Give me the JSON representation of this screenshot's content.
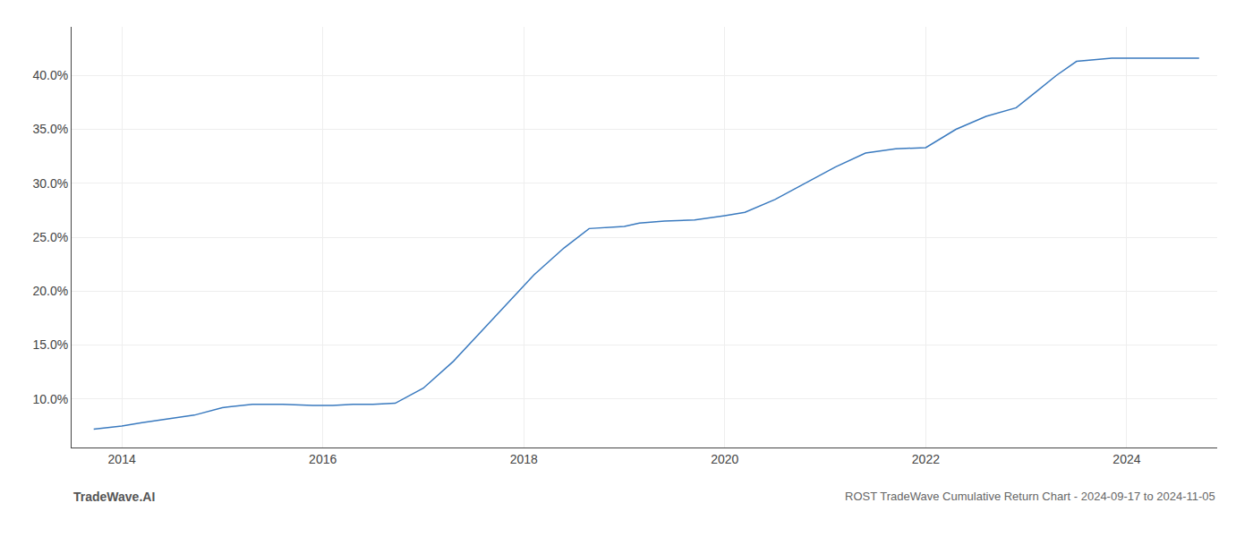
{
  "chart_data": {
    "type": "line",
    "title": "ROST TradeWave Cumulative Return Chart - 2024-09-17 to 2024-11-05",
    "annotations": [
      {
        "text": "TradeWave.AI"
      }
    ],
    "x": [
      2013.72,
      2014.0,
      2014.2,
      2014.5,
      2014.72,
      2015.0,
      2015.3,
      2015.6,
      2015.9,
      2016.1,
      2016.3,
      2016.5,
      2016.72,
      2017.0,
      2017.3,
      2017.6,
      2017.9,
      2018.1,
      2018.4,
      2018.65,
      2019.0,
      2019.15,
      2019.4,
      2019.7,
      2020.0,
      2020.2,
      2020.5,
      2020.8,
      2021.1,
      2021.4,
      2021.7,
      2022.0,
      2022.3,
      2022.6,
      2022.9,
      2023.1,
      2023.3,
      2023.5,
      2023.7,
      2023.85,
      2024.0,
      2024.72
    ],
    "values": [
      7.2,
      7.5,
      7.8,
      8.2,
      8.5,
      9.2,
      9.5,
      9.5,
      9.4,
      9.4,
      9.5,
      9.5,
      9.6,
      11.0,
      13.5,
      16.5,
      19.5,
      21.5,
      24.0,
      25.8,
      26.0,
      26.3,
      26.5,
      26.6,
      27.0,
      27.3,
      28.5,
      30.0,
      31.5,
      32.8,
      33.2,
      33.3,
      35.0,
      36.2,
      37.0,
      38.5,
      40.0,
      41.3,
      41.5,
      41.6,
      41.6,
      41.6
    ],
    "color": "#3a7abf",
    "xlim": [
      2013.5,
      2024.9
    ],
    "ylim": [
      5.5,
      44.5
    ],
    "xticks": [
      2014,
      2016,
      2018,
      2020,
      2022,
      2024
    ],
    "yticks": [
      {
        "value": 10.0,
        "label": "10.0%"
      },
      {
        "value": 15.0,
        "label": "15.0%"
      },
      {
        "value": 20.0,
        "label": "20.0%"
      },
      {
        "value": 25.0,
        "label": "25.0%"
      },
      {
        "value": 30.0,
        "label": "30.0%"
      },
      {
        "value": 35.0,
        "label": "35.0%"
      },
      {
        "value": 40.0,
        "label": "40.0%"
      }
    ],
    "grid": true
  }
}
